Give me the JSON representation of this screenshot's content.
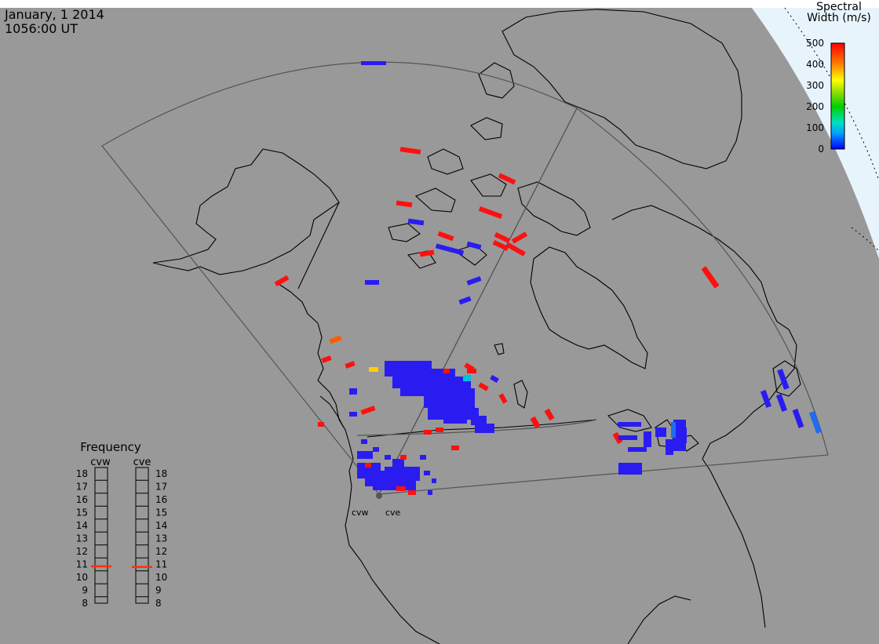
{
  "header": {
    "date": "January, 1 2014",
    "time": "1056:00 UT"
  },
  "colorbar": {
    "title_line1": "Spectral",
    "title_line2": "Width (m/s)",
    "ticks": [
      "500",
      "400",
      "300",
      "200",
      "100",
      "0"
    ],
    "min": 0,
    "max": 500,
    "colors": [
      "#0000ff",
      "#00bfff",
      "#00e0b0",
      "#00d000",
      "#80e000",
      "#ffff00",
      "#ffb000",
      "#ff6000",
      "#ff0000"
    ]
  },
  "frequency_panel": {
    "title": "Frequency",
    "radar_left": "cvw",
    "radar_right": "cve",
    "scale": [
      "18",
      "17",
      "16",
      "15",
      "14",
      "13",
      "12",
      "11",
      "10",
      "9",
      "8"
    ],
    "cvw_value": 10.85,
    "cve_value": 10.8,
    "marker_color": "#ff3000"
  },
  "radars": [
    {
      "code": "cvw"
    },
    {
      "code": "cve"
    }
  ],
  "colors": {
    "land": "#999999",
    "outside": "#ffffff",
    "dayside": "#e8f4fc",
    "coastline": "#000000",
    "fov": "#555555"
  }
}
